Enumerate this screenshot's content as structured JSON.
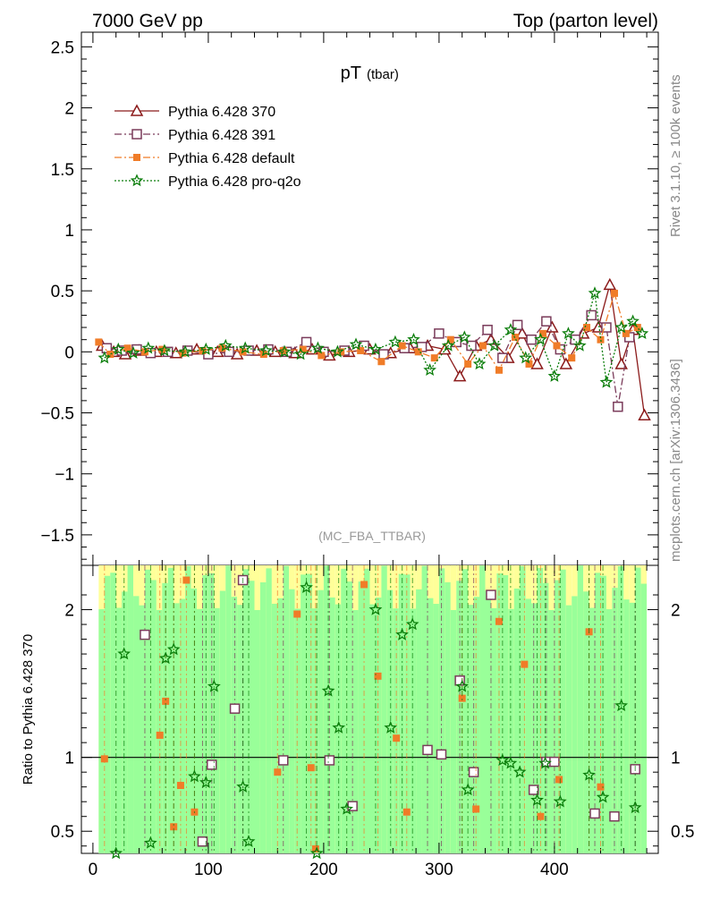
{
  "header": {
    "left": "7000 GeV pp",
    "right": "Top (parton level)"
  },
  "side_labels": {
    "rivet": "Rivet 3.1.10, ≥ 100k events",
    "mcplots": "mcplots.cern.ch [arXiv:1306.3436]"
  },
  "chart_data": [
    {
      "type": "line",
      "title": "pT",
      "title_sub": "(tbar)",
      "watermark": "(MC_FBA_TTBAR)",
      "xlabel": "",
      "ylabel": "",
      "xlim": [
        -10,
        490
      ],
      "ylim": [
        -1.75,
        2.62
      ],
      "xticks": [
        0,
        100,
        200,
        300,
        400
      ],
      "yticks": [
        -1.5,
        -1,
        -0.5,
        0,
        0.5,
        1,
        1.5,
        2,
        2.5
      ],
      "ytick_labels": [
        "−1.5",
        "−1",
        "−0.5",
        "0",
        "0.5",
        "1",
        "1.5",
        "2",
        "2.5"
      ],
      "legend_placement": "top-left",
      "series": [
        {
          "name": "Pythia 6.428 370",
          "color": "#8b1a1a",
          "marker": "open-triangle",
          "style": "solid",
          "x": [
            8,
            18,
            28,
            40,
            55,
            72,
            90,
            108,
            125,
            142,
            158,
            175,
            190,
            205,
            222,
            240,
            258,
            275,
            290,
            305,
            318,
            332,
            345,
            360,
            372,
            385,
            398,
            410,
            425,
            438,
            448,
            458,
            468,
            478
          ],
          "y": [
            0.05,
            0.0,
            -0.02,
            0.01,
            0.0,
            -0.01,
            0.02,
            0.0,
            -0.02,
            0.01,
            0.0,
            -0.01,
            0.02,
            -0.03,
            0.0,
            0.02,
            -0.01,
            0.03,
            0.05,
            0.02,
            -0.2,
            0.05,
            0.1,
            -0.05,
            0.15,
            -0.1,
            0.2,
            -0.1,
            0.15,
            0.2,
            0.55,
            -0.1,
            0.18,
            -0.52
          ]
        },
        {
          "name": "Pythia 6.428 391",
          "color": "#7a3b5a",
          "marker": "open-square",
          "style": "dash-dot",
          "x": [
            12,
            25,
            38,
            50,
            65,
            82,
            100,
            118,
            135,
            152,
            168,
            185,
            200,
            218,
            235,
            252,
            270,
            285,
            300,
            315,
            328,
            342,
            355,
            368,
            380,
            393,
            405,
            418,
            432,
            445,
            455,
            465
          ],
          "y": [
            0.03,
            0.01,
            0.02,
            -0.01,
            0.0,
            0.01,
            -0.02,
            0.0,
            0.01,
            0.02,
            0.0,
            0.08,
            0.0,
            0.01,
            0.05,
            -0.02,
            0.03,
            0.04,
            0.15,
            0.08,
            0.05,
            0.18,
            -0.05,
            0.22,
            0.1,
            0.25,
            0.02,
            0.1,
            0.3,
            0.2,
            -0.45,
            0.12
          ]
        },
        {
          "name": "Pythia 6.428 default",
          "color": "#f07c28",
          "marker": "filled-square",
          "style": "dash-dot",
          "x": [
            5,
            15,
            30,
            45,
            60,
            78,
            95,
            112,
            130,
            148,
            165,
            182,
            198,
            215,
            232,
            250,
            268,
            282,
            296,
            310,
            325,
            338,
            352,
            366,
            378,
            390,
            402,
            415,
            428,
            440,
            452,
            462,
            472
          ],
          "y": [
            0.08,
            -0.02,
            0.03,
            0.0,
            0.02,
            -0.01,
            0.01,
            0.03,
            0.0,
            -0.02,
            0.01,
            0.02,
            -0.03,
            0.0,
            0.01,
            -0.08,
            0.05,
            0.0,
            -0.05,
            0.1,
            -0.1,
            0.05,
            -0.15,
            0.12,
            -0.1,
            0.15,
            0.05,
            -0.05,
            0.2,
            0.1,
            0.48,
            0.15,
            0.2
          ]
        },
        {
          "name": "Pythia 6.428 pro-q2o",
          "color": "#0a7d0a",
          "marker": "open-star",
          "style": "dotted",
          "x": [
            10,
            22,
            35,
            48,
            62,
            80,
            98,
            115,
            132,
            150,
            166,
            180,
            195,
            212,
            228,
            245,
            262,
            278,
            292,
            308,
            322,
            335,
            348,
            362,
            375,
            388,
            400,
            412,
            422,
            435,
            445,
            458,
            468,
            476
          ],
          "y": [
            -0.05,
            0.02,
            -0.01,
            0.03,
            0.01,
            0.0,
            0.02,
            0.05,
            0.03,
            0.01,
            0.0,
            -0.02,
            0.03,
            0.0,
            0.06,
            0.02,
            0.08,
            0.1,
            -0.15,
            0.05,
            0.12,
            -0.1,
            0.05,
            0.18,
            -0.05,
            0.1,
            -0.2,
            0.15,
            0.05,
            0.48,
            -0.25,
            0.2,
            0.25,
            0.15
          ]
        }
      ]
    },
    {
      "type": "scatter",
      "ylabel": "Ratio to Pythia 6.428 370",
      "xlim": [
        -10,
        490
      ],
      "ylim": [
        0.35,
        2.3
      ],
      "xticks": [
        0,
        100,
        200,
        300,
        400
      ],
      "xtick_labels": [
        "0",
        "100",
        "200",
        "300",
        "400"
      ],
      "yticks": [
        0.5,
        1,
        2
      ],
      "ytick_labels": [
        "0.5",
        "1",
        "2"
      ],
      "reference_line": 1,
      "series": [
        {
          "name": "Pythia 6.428 391",
          "color": "#7a3b5a",
          "marker": "open-square",
          "x": [
            45,
            95,
            103,
            123,
            130,
            165,
            205,
            225,
            290,
            302,
            318,
            330,
            345,
            382,
            393,
            400,
            435,
            452,
            470
          ],
          "y": [
            1.83,
            0.43,
            0.95,
            1.33,
            2.2,
            0.98,
            0.98,
            0.67,
            1.05,
            1.02,
            1.52,
            0.9,
            2.1,
            0.78,
            0.97,
            0.97,
            0.62,
            0.6,
            0.92
          ]
        },
        {
          "name": "Pythia 6.428 default",
          "color": "#f07c28",
          "marker": "filled-square",
          "x": [
            10,
            58,
            63,
            70,
            76,
            81,
            88,
            160,
            177,
            189,
            193,
            235,
            247,
            263,
            272,
            320,
            332,
            352,
            374,
            388,
            404,
            430,
            440
          ],
          "y": [
            0.99,
            1.15,
            1.38,
            0.53,
            0.81,
            2.2,
            0.63,
            0.9,
            1.97,
            0.93,
            0.38,
            2.17,
            1.55,
            1.13,
            0.63,
            1.4,
            0.65,
            1.92,
            1.63,
            0.6,
            0.85,
            1.85,
            0.8
          ]
        },
        {
          "name": "Pythia 6.428 pro-q2o",
          "color": "#0a7d0a",
          "marker": "open-star",
          "x": [
            20,
            27,
            50,
            63,
            70,
            88,
            98,
            105,
            130,
            135,
            185,
            194,
            204,
            213,
            220,
            245,
            258,
            268,
            277,
            320,
            325,
            355,
            362,
            370,
            385,
            392,
            405,
            430,
            442,
            458,
            470
          ],
          "y": [
            0.35,
            1.7,
            0.42,
            1.67,
            1.73,
            0.87,
            0.83,
            1.48,
            0.8,
            0.43,
            2.15,
            0.35,
            1.45,
            1.2,
            0.65,
            2.0,
            1.2,
            1.83,
            1.9,
            1.48,
            0.78,
            0.98,
            0.96,
            0.9,
            0.71,
            0.96,
            0.7,
            0.88,
            0.73,
            1.35,
            0.66
          ]
        }
      ]
    }
  ]
}
